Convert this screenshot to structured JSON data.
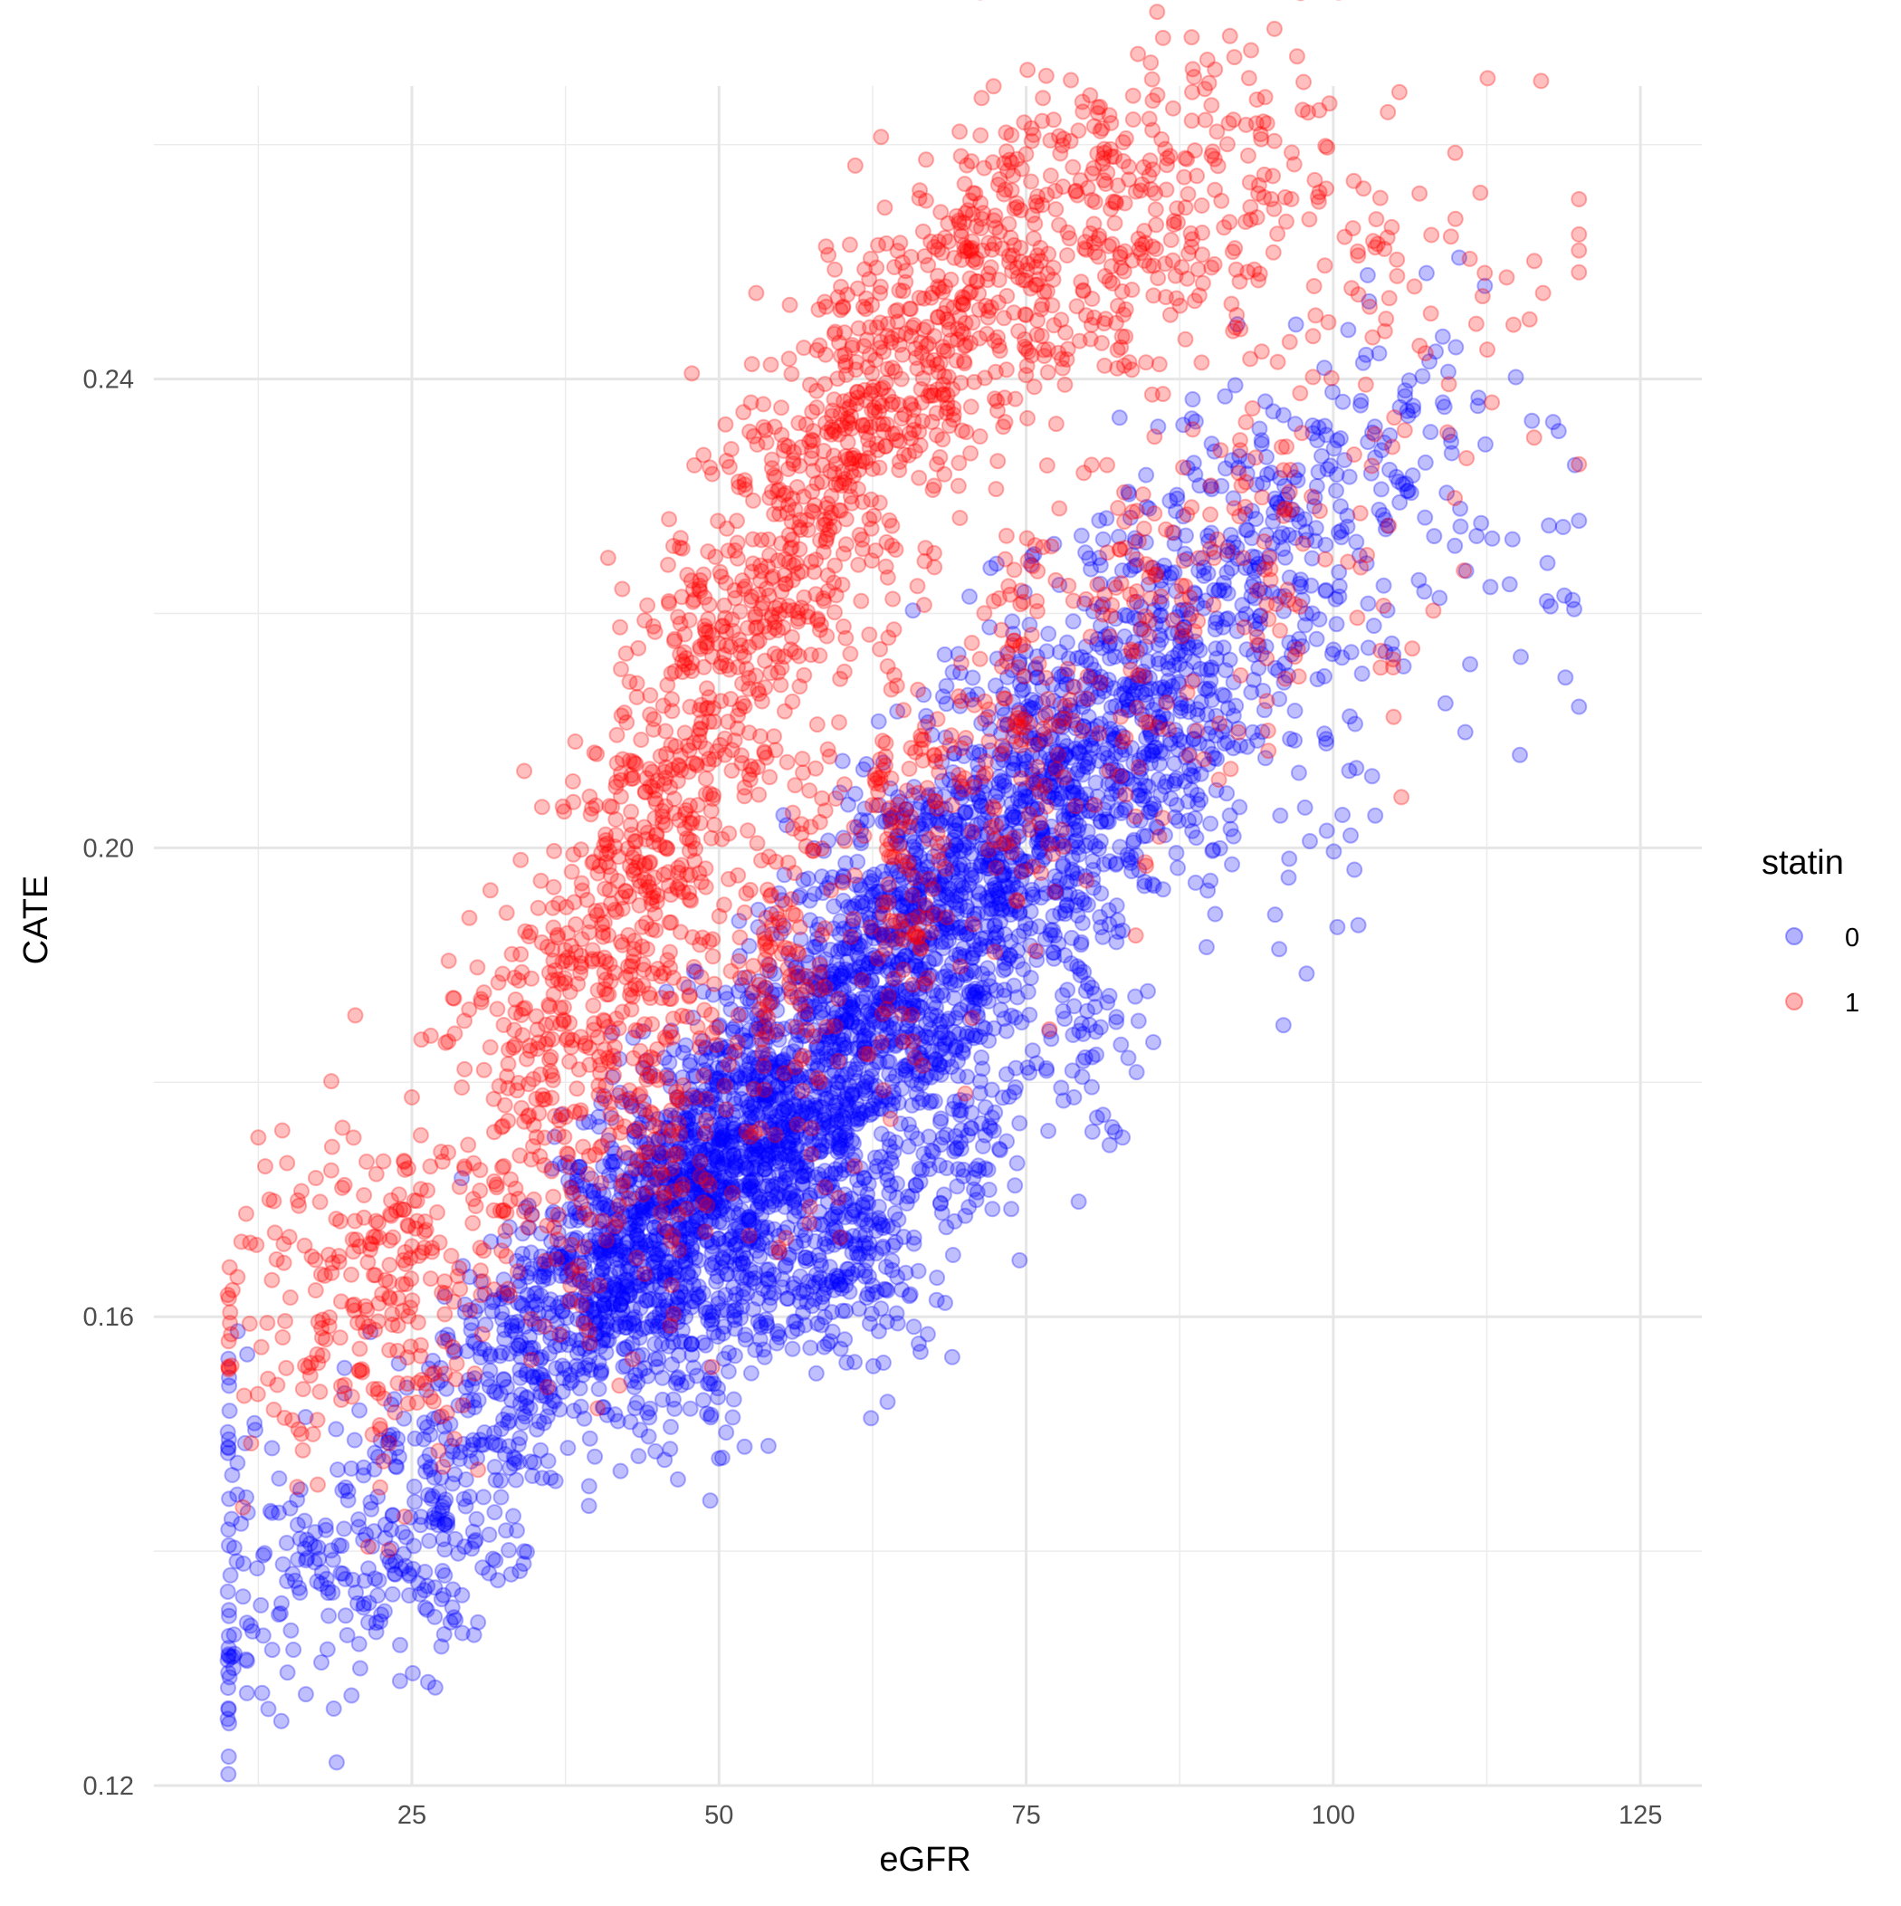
{
  "chart_data": {
    "type": "scatter",
    "title": "",
    "xlabel": "eGFR",
    "ylabel": "CATE",
    "xlim": [
      4,
      130
    ],
    "ylim": [
      0.12,
      0.265
    ],
    "x_ticks": [
      25,
      50,
      75,
      100,
      125
    ],
    "x_tick_labels": [
      "25",
      "50",
      "75",
      "100",
      "125"
    ],
    "y_ticks": [
      0.12,
      0.16,
      0.2,
      0.24
    ],
    "y_tick_labels": [
      "0.12",
      "0.16",
      "0.20",
      "0.24"
    ],
    "grid": true,
    "legend": {
      "title": "statin",
      "position": "right"
    },
    "point_alpha": 0.25,
    "series": [
      {
        "name": "0",
        "color": "#0000FF",
        "cloud": [
          [
            10,
            0.129,
            0.005,
            30
          ],
          [
            10,
            0.142,
            0.006,
            25
          ],
          [
            10,
            0.15,
            0.004,
            10
          ],
          [
            18,
            0.137,
            0.005,
            70
          ],
          [
            24,
            0.14,
            0.006,
            110
          ],
          [
            29,
            0.145,
            0.006,
            80
          ],
          [
            30,
            0.152,
            0.006,
            70
          ],
          [
            35,
            0.158,
            0.006,
            160
          ],
          [
            40,
            0.163,
            0.006,
            260
          ],
          [
            45,
            0.168,
            0.007,
            380
          ],
          [
            50,
            0.173,
            0.007,
            400
          ],
          [
            55,
            0.177,
            0.007,
            380
          ],
          [
            60,
            0.184,
            0.008,
            380
          ],
          [
            65,
            0.19,
            0.008,
            350
          ],
          [
            70,
            0.196,
            0.008,
            320
          ],
          [
            75,
            0.202,
            0.008,
            280
          ],
          [
            80,
            0.208,
            0.008,
            230
          ],
          [
            85,
            0.213,
            0.008,
            180
          ],
          [
            90,
            0.219,
            0.008,
            140
          ],
          [
            95,
            0.225,
            0.008,
            100
          ],
          [
            100,
            0.229,
            0.008,
            70
          ],
          [
            105,
            0.233,
            0.008,
            45
          ],
          [
            110,
            0.232,
            0.009,
            28
          ],
          [
            116,
            0.226,
            0.01,
            12
          ],
          [
            120,
            0.226,
            0.009,
            8
          ],
          [
            62,
            0.165,
            0.005,
            140
          ],
          [
            55,
            0.163,
            0.004,
            80
          ],
          [
            70,
            0.178,
            0.006,
            110
          ],
          [
            48,
            0.154,
            0.004,
            40
          ],
          [
            80,
            0.185,
            0.006,
            60
          ],
          [
            88,
            0.205,
            0.006,
            55
          ],
          [
            98,
            0.203,
            0.006,
            30
          ]
        ]
      },
      {
        "name": "1",
        "color": "#FF0000",
        "cloud": [
          [
            10,
            0.16,
            0.005,
            20
          ],
          [
            16,
            0.16,
            0.008,
            70
          ],
          [
            22,
            0.162,
            0.008,
            100
          ],
          [
            27,
            0.16,
            0.008,
            70
          ],
          [
            32,
            0.178,
            0.008,
            80
          ],
          [
            37,
            0.186,
            0.008,
            120
          ],
          [
            42,
            0.195,
            0.008,
            150
          ],
          [
            46,
            0.205,
            0.009,
            160
          ],
          [
            51,
            0.216,
            0.009,
            170
          ],
          [
            56,
            0.226,
            0.009,
            170
          ],
          [
            61,
            0.236,
            0.008,
            170
          ],
          [
            66,
            0.241,
            0.007,
            150
          ],
          [
            71,
            0.246,
            0.007,
            130
          ],
          [
            76,
            0.25,
            0.007,
            110
          ],
          [
            81,
            0.253,
            0.007,
            90
          ],
          [
            86,
            0.254,
            0.007,
            75
          ],
          [
            91,
            0.255,
            0.007,
            60
          ],
          [
            97,
            0.254,
            0.008,
            45
          ],
          [
            104,
            0.251,
            0.008,
            30
          ],
          [
            111,
            0.248,
            0.009,
            18
          ],
          [
            118,
            0.25,
            0.01,
            10
          ],
          [
            45,
            0.178,
            0.008,
            120
          ],
          [
            55,
            0.19,
            0.009,
            140
          ],
          [
            65,
            0.2,
            0.009,
            150
          ],
          [
            75,
            0.21,
            0.009,
            130
          ],
          [
            85,
            0.218,
            0.009,
            100
          ],
          [
            95,
            0.225,
            0.009,
            60
          ],
          [
            105,
            0.222,
            0.009,
            25
          ],
          [
            38,
            0.17,
            0.008,
            60
          ]
        ]
      }
    ]
  }
}
